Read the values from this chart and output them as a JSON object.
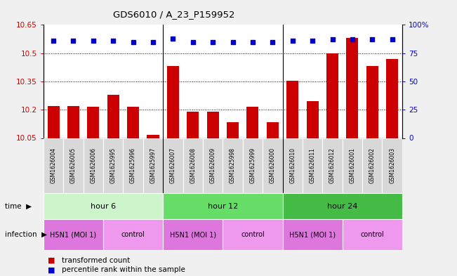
{
  "title": "GDS6010 / A_23_P159952",
  "samples": [
    "GSM1626004",
    "GSM1626005",
    "GSM1626006",
    "GSM1625995",
    "GSM1625996",
    "GSM1625997",
    "GSM1626007",
    "GSM1626008",
    "GSM1626009",
    "GSM1625998",
    "GSM1625999",
    "GSM1626000",
    "GSM1626010",
    "GSM1626011",
    "GSM1626012",
    "GSM1626001",
    "GSM1626002",
    "GSM1626003"
  ],
  "bar_values": [
    10.22,
    10.22,
    10.215,
    10.28,
    10.215,
    10.065,
    10.43,
    10.19,
    10.19,
    10.135,
    10.215,
    10.135,
    10.355,
    10.245,
    10.5,
    10.58,
    10.43,
    10.47
  ],
  "dot_values": [
    86,
    86,
    86,
    86,
    85,
    85,
    88,
    85,
    85,
    85,
    85,
    85,
    86,
    86,
    87,
    87,
    87,
    87
  ],
  "ylim": [
    10.05,
    10.65
  ],
  "y2lim": [
    0,
    100
  ],
  "yticks": [
    10.05,
    10.2,
    10.35,
    10.5,
    10.65
  ],
  "y2ticks": [
    0,
    25,
    50,
    75,
    100
  ],
  "bar_color": "#cc0000",
  "dot_color": "#0000cc",
  "bar_width": 0.6,
  "time_groups": [
    {
      "label": "hour 6",
      "start": 0,
      "end": 6,
      "color": "#ccf5cc"
    },
    {
      "label": "hour 12",
      "start": 6,
      "end": 12,
      "color": "#66dd66"
    },
    {
      "label": "hour 24",
      "start": 12,
      "end": 18,
      "color": "#44bb44"
    }
  ],
  "infection_segments": [
    {
      "label": "H5N1 (MOI 1)",
      "start": 0,
      "end": 3,
      "color": "#dd77dd"
    },
    {
      "label": "control",
      "start": 3,
      "end": 6,
      "color": "#ee99ee"
    },
    {
      "label": "H5N1 (MOI 1)",
      "start": 6,
      "end": 9,
      "color": "#dd77dd"
    },
    {
      "label": "control",
      "start": 9,
      "end": 12,
      "color": "#ee99ee"
    },
    {
      "label": "H5N1 (MOI 1)",
      "start": 12,
      "end": 15,
      "color": "#dd77dd"
    },
    {
      "label": "control",
      "start": 15,
      "end": 18,
      "color": "#ee99ee"
    }
  ],
  "group_seps": [
    5.5,
    11.5
  ],
  "time_label": "time",
  "infection_label": "infection",
  "legend_bar": "transformed count",
  "legend_dot": "percentile rank within the sample",
  "fig_bg": "#f0f0f0",
  "plot_bg": "#ffffff",
  "sample_box_color": "#d8d8d8"
}
